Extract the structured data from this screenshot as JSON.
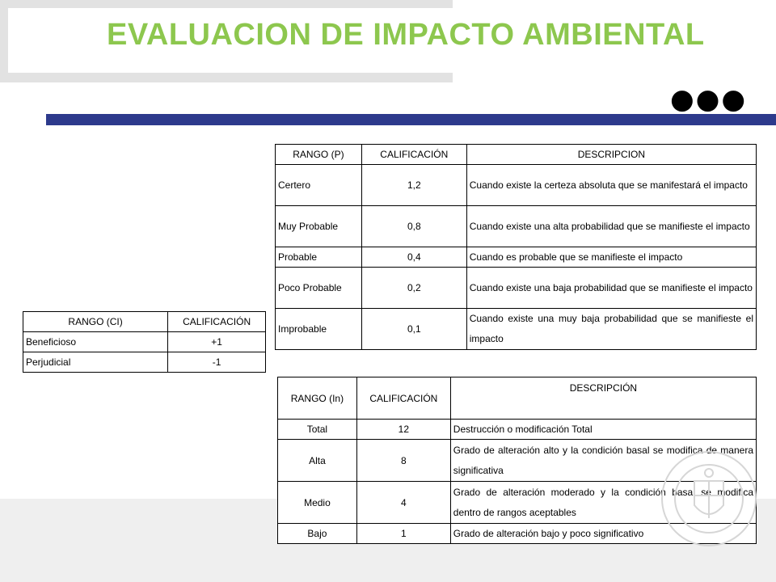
{
  "title": "EVALUACION DE IMPACTO AMBIENTAL",
  "dots": "●●●",
  "colors": {
    "title": "#8dc74e",
    "bar": "#2d3a8c"
  },
  "table_p": {
    "headers": [
      "RANGO (P)",
      "CALIFICACIÓN",
      "DESCRIPCION"
    ],
    "rows": [
      [
        "Certero",
        "1,2",
        "Cuando existe la certeza absoluta que se manifestará el impacto"
      ],
      [
        "Muy Probable",
        "0,8",
        "Cuando existe una alta probabilidad que se manifieste el impacto"
      ],
      [
        "Probable",
        "0,4",
        "Cuando es probable que se manifieste el impacto"
      ],
      [
        "Poco Probable",
        "0,2",
        "Cuando existe una baja probabilidad que se manifieste el impacto"
      ],
      [
        "Improbable",
        "0,1",
        "Cuando existe una muy baja probabilidad que se manifieste el impacto"
      ]
    ]
  },
  "table_ci": {
    "headers": [
      "RANGO (CI)",
      "CALIFICACIÓN"
    ],
    "rows": [
      [
        "Beneficioso",
        "+1"
      ],
      [
        "Perjudicial",
        "-1"
      ]
    ]
  },
  "table_in": {
    "headers": [
      "RANGO (In)",
      "CALIFICACIÓN",
      "DESCRIPCIÓN"
    ],
    "rows": [
      [
        "Total",
        "12",
        "Destrucción o modificación Total"
      ],
      [
        "Alta",
        "8",
        "Grado de alteración alto y la condición basal se modifica de manera significativa"
      ],
      [
        "Medio",
        "4",
        "Grado de alteración moderado y la condición basal se modifica dentro de rangos aceptables"
      ],
      [
        "Bajo",
        "1",
        "Grado de alteración bajo y poco significativo"
      ]
    ]
  }
}
